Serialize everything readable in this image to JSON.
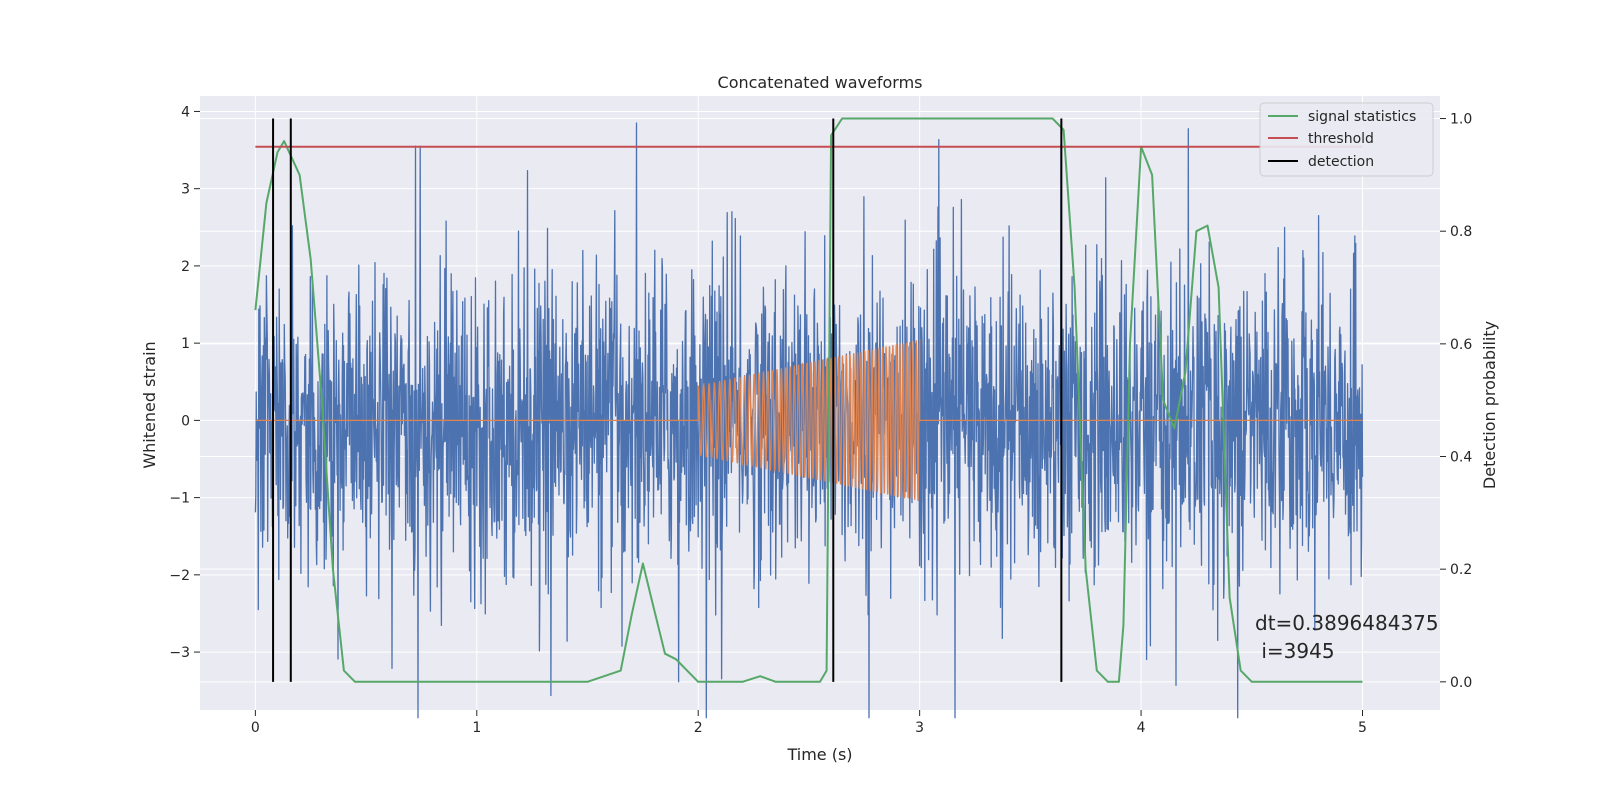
{
  "chart_data": {
    "type": "line",
    "title": "Concatenated waveforms",
    "xlabel": "Time (s)",
    "ylabel": "Whitened strain",
    "y2label": "Detection probability",
    "xlim": [
      -0.25,
      5.35
    ],
    "ylim": [
      -3.75,
      4.2
    ],
    "y2lim": [
      -0.05,
      1.04
    ],
    "x_ticks": [
      0,
      1,
      2,
      3,
      4,
      5
    ],
    "y_ticks": [
      -3,
      -2,
      -1,
      0,
      1,
      2,
      3,
      4
    ],
    "y2_ticks": [
      0.0,
      0.2,
      0.4,
      0.6,
      0.8,
      1.0
    ],
    "x_tick_labels": [
      "0",
      "1",
      "2",
      "3",
      "4",
      "5"
    ],
    "y_tick_labels": [
      "−3",
      "−2",
      "−1",
      "0",
      "1",
      "2",
      "3",
      "4"
    ],
    "y2_tick_labels": [
      "0.0",
      "0.2",
      "0.4",
      "0.6",
      "0.8",
      "1.0"
    ],
    "grid": true,
    "legend_position": "top-right",
    "colors": {
      "noise": "#4c72b0",
      "injection": "#dd8452",
      "signal_statistics": "#55a868",
      "threshold": "#c44e52",
      "detection": "#000000",
      "background": "#eaeaf2",
      "grid": "#ffffff"
    },
    "series": [
      {
        "name": "signal statistics",
        "axis": "right",
        "x": [
          0.0,
          0.05,
          0.1,
          0.13,
          0.2,
          0.25,
          0.3,
          0.35,
          0.4,
          0.45,
          0.5,
          1.0,
          1.5,
          1.65,
          1.7,
          1.75,
          1.8,
          1.85,
          1.9,
          1.95,
          2.0,
          2.05,
          2.1,
          2.2,
          2.28,
          2.35,
          2.45,
          2.55,
          2.58,
          2.6,
          2.65,
          2.7,
          3.0,
          3.5,
          3.6,
          3.65,
          3.7,
          3.75,
          3.8,
          3.85,
          3.9,
          3.92,
          3.95,
          4.0,
          4.05,
          4.1,
          4.15,
          4.2,
          4.25,
          4.3,
          4.35,
          4.4,
          4.45,
          4.5,
          5.0
        ],
        "y": [
          0.66,
          0.85,
          0.94,
          0.96,
          0.9,
          0.75,
          0.5,
          0.2,
          0.02,
          0.0,
          0.0,
          0.0,
          0.0,
          0.02,
          0.12,
          0.21,
          0.13,
          0.05,
          0.04,
          0.02,
          0.0,
          0.0,
          0.0,
          0.0,
          0.01,
          0.0,
          0.0,
          0.0,
          0.02,
          0.97,
          1.0,
          1.0,
          1.0,
          1.0,
          1.0,
          0.98,
          0.7,
          0.2,
          0.02,
          0.0,
          0.0,
          0.1,
          0.6,
          0.95,
          0.9,
          0.5,
          0.45,
          0.55,
          0.8,
          0.81,
          0.7,
          0.15,
          0.02,
          0.0,
          0.0
        ]
      },
      {
        "name": "threshold",
        "axis": "right",
        "x": [
          0.0,
          5.0
        ],
        "y": [
          0.95,
          0.95
        ]
      },
      {
        "name": "detection",
        "axis": "right",
        "x": [
          0.08,
          0.16,
          2.61,
          3.64
        ],
        "y": [
          1.0,
          1.0,
          1.0,
          1.0
        ]
      },
      {
        "name": "",
        "axis": "left",
        "kind": "noise",
        "x_range": [
          0.0,
          5.0
        ],
        "amplitude_abs_max": 3.85,
        "note_visible": ""
      },
      {
        "name": "",
        "axis": "left",
        "kind": "injection",
        "x": [
          0.0,
          2.0,
          2.0,
          3.0,
          3.0,
          5.0
        ],
        "y": [
          0.0,
          0.0,
          0.45,
          1.05,
          0.0,
          0.0
        ]
      }
    ],
    "annotations": [
      {
        "text": "dt=0.3896484375",
        "x": 4.5,
        "y": -2.55
      },
      {
        "text": " i=3945",
        "x": 4.5,
        "y": -2.9
      }
    ]
  }
}
